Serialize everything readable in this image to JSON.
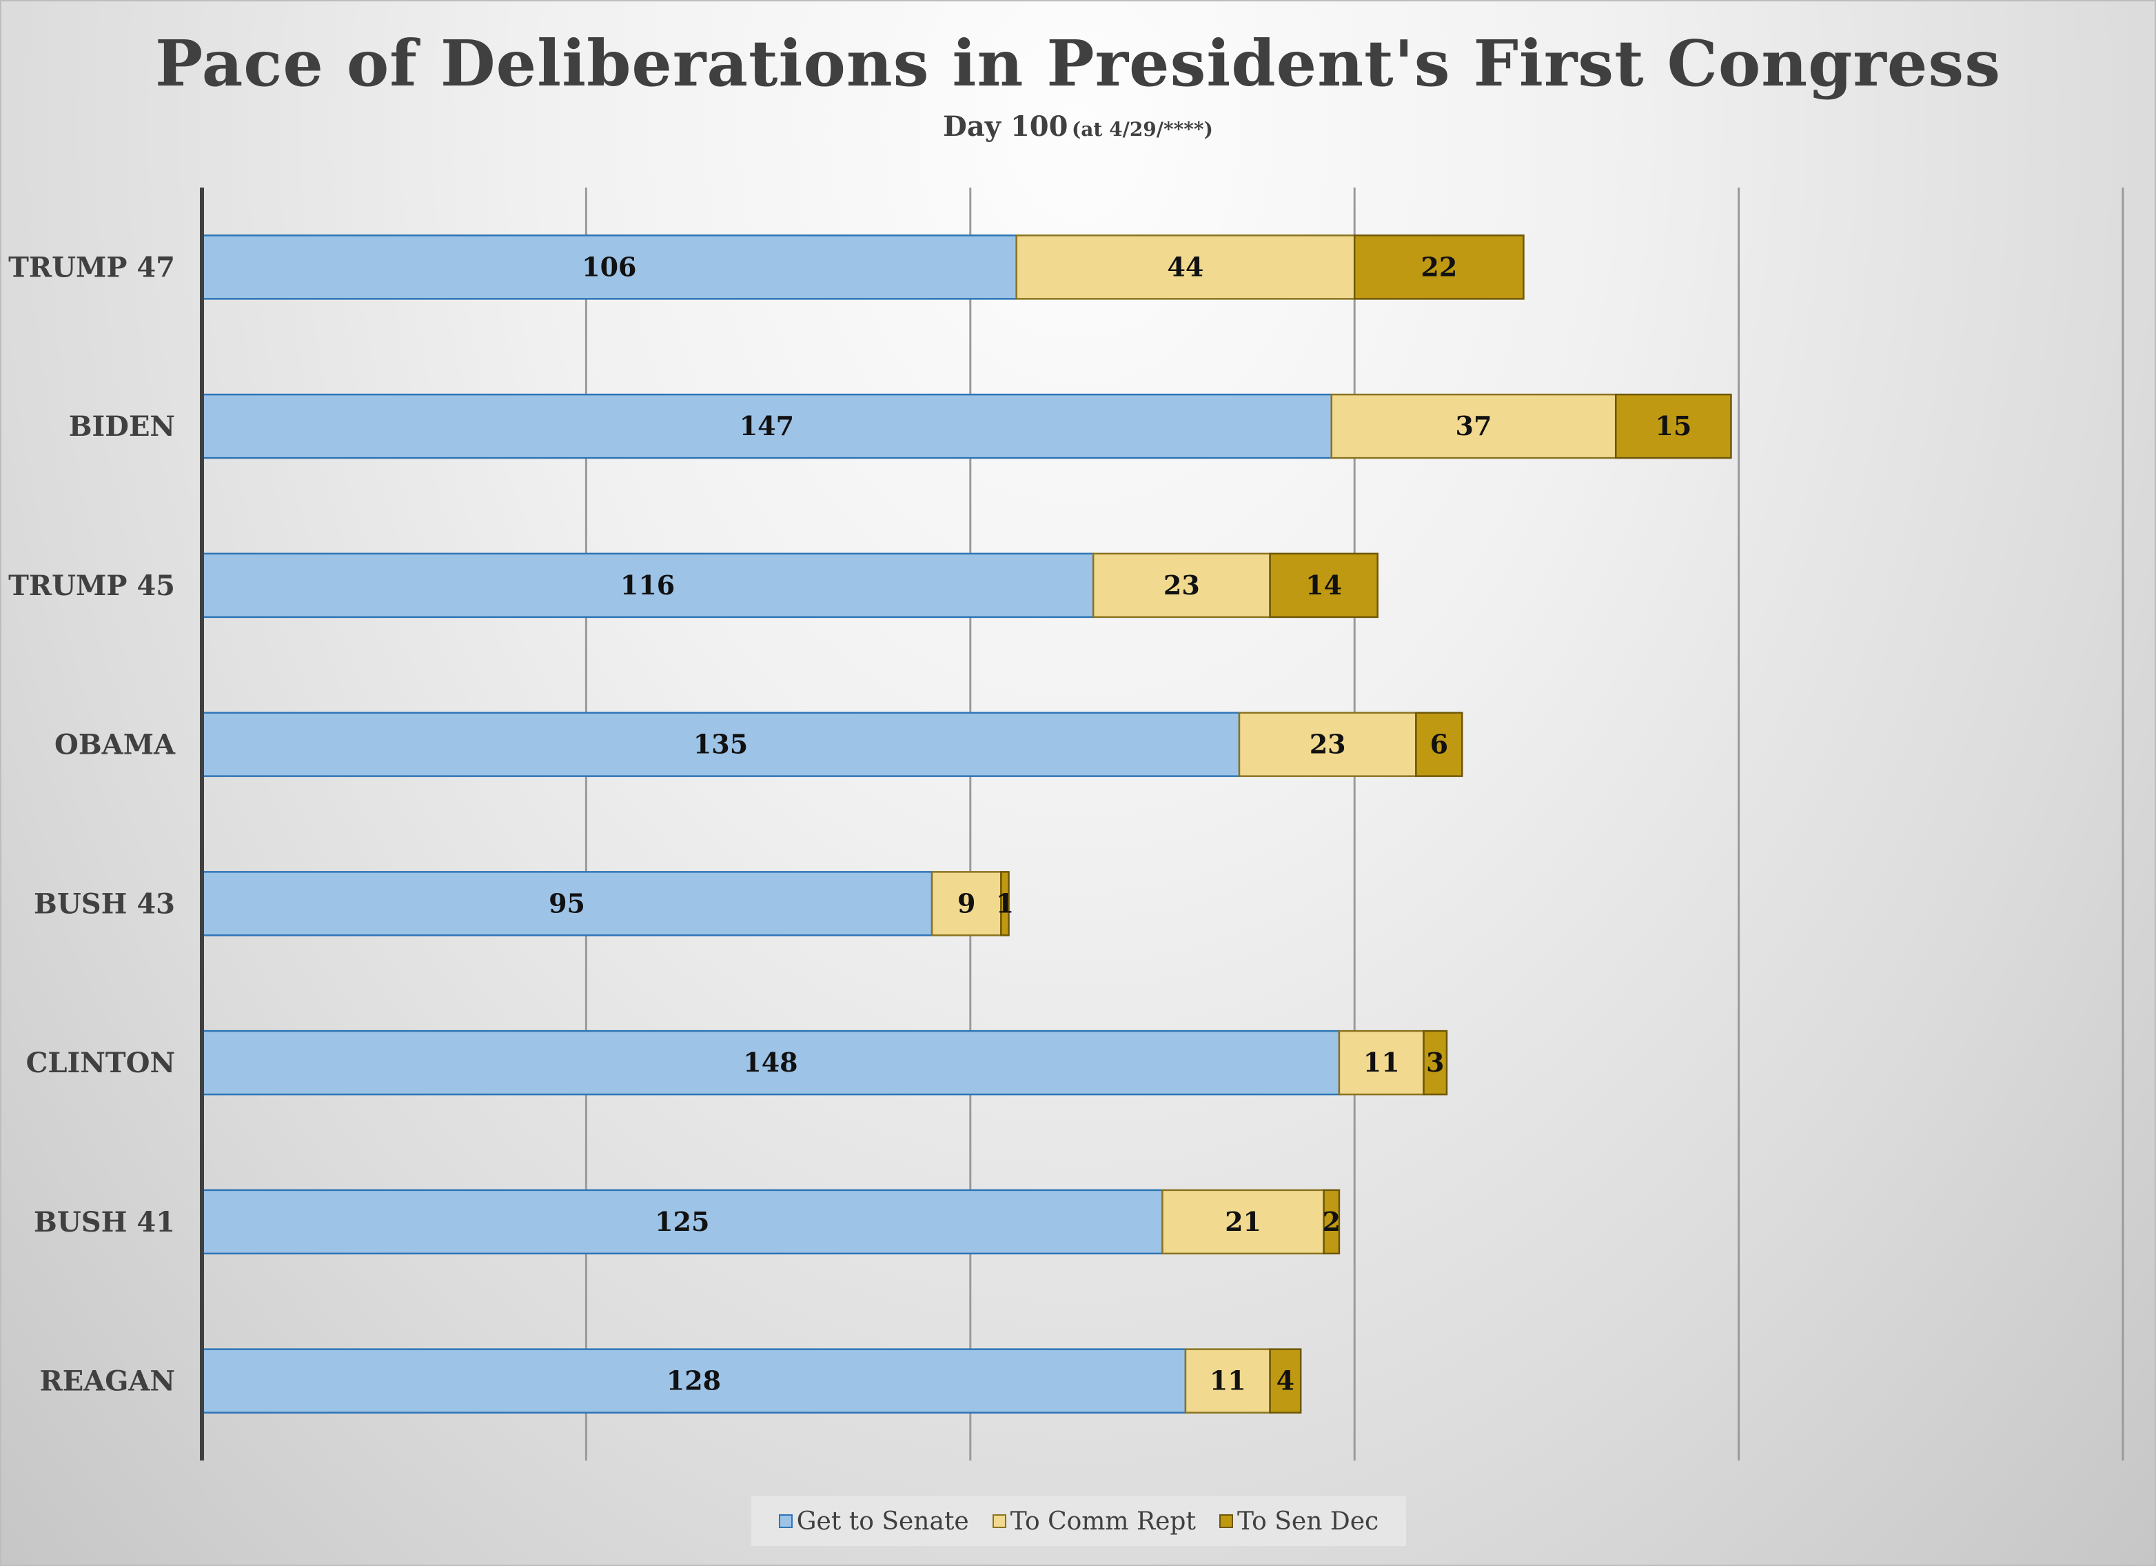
{
  "chart_data": {
    "type": "bar",
    "orientation": "horizontal",
    "stacked": true,
    "title": "Pace of  Deliberations in President's First Congress",
    "subtitle_main": "Day 100",
    "subtitle_note": "(at 4/29/****)",
    "categories": [
      "TRUMP 47",
      "BIDEN",
      "TRUMP 45",
      "OBAMA",
      "BUSH 43",
      "CLINTON",
      "BUSH 41",
      "REAGAN"
    ],
    "series": [
      {
        "name": "Get to Senate",
        "color": "#9dc3e6",
        "edge": "#2e75b6",
        "values": [
          106,
          147,
          116,
          135,
          95,
          148,
          125,
          128
        ]
      },
      {
        "name": "To Comm Rept",
        "color": "#f1da8f",
        "edge": "#8a7320",
        "values": [
          44,
          37,
          23,
          23,
          9,
          11,
          21,
          11
        ]
      },
      {
        "name": "To Sen Dec",
        "color": "#c09913",
        "edge": "#6e5706",
        "values": [
          22,
          15,
          14,
          6,
          1,
          3,
          2,
          4
        ]
      }
    ],
    "xlim": [
      0,
      250
    ],
    "x_gridlines": [
      50,
      100,
      150,
      200,
      250
    ],
    "grid": true,
    "legend_position": "bottom"
  }
}
